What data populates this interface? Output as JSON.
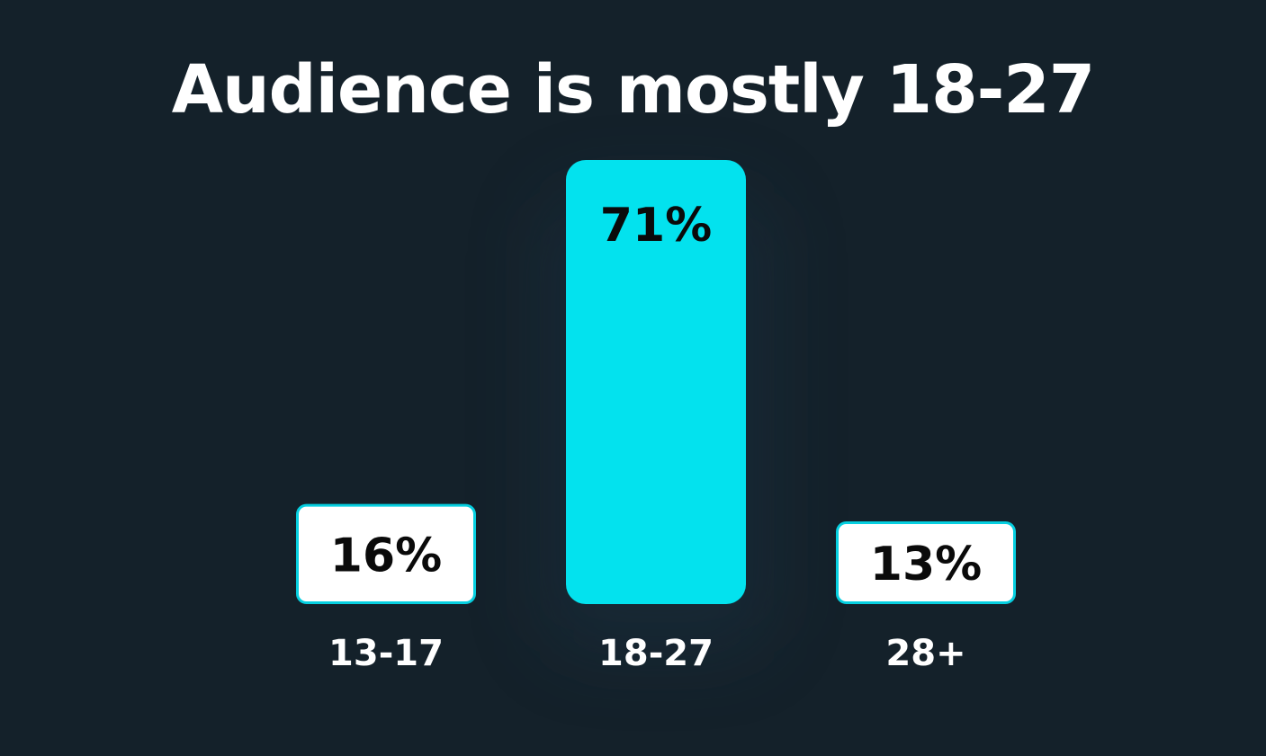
{
  "chart_data": {
    "type": "bar",
    "title": "Audience is mostly 18-27",
    "xlabel": "",
    "ylabel": "",
    "categories": [
      "13-17",
      "18-27",
      "28+"
    ],
    "values": [
      16,
      71,
      13
    ],
    "value_labels": [
      "16%",
      "71%",
      "13%"
    ],
    "unit": "%",
    "grid": false,
    "legend": "none",
    "highlight_index": 1,
    "colors": {
      "background": "#14212a",
      "highlight_bar": "#03e2ee",
      "normal_bar_fill": "#ffffff",
      "bar_outline": "#06cfe0",
      "value_text": "#0a0a0a",
      "category_text": "#ffffff",
      "title_text": "#ffffff"
    }
  }
}
